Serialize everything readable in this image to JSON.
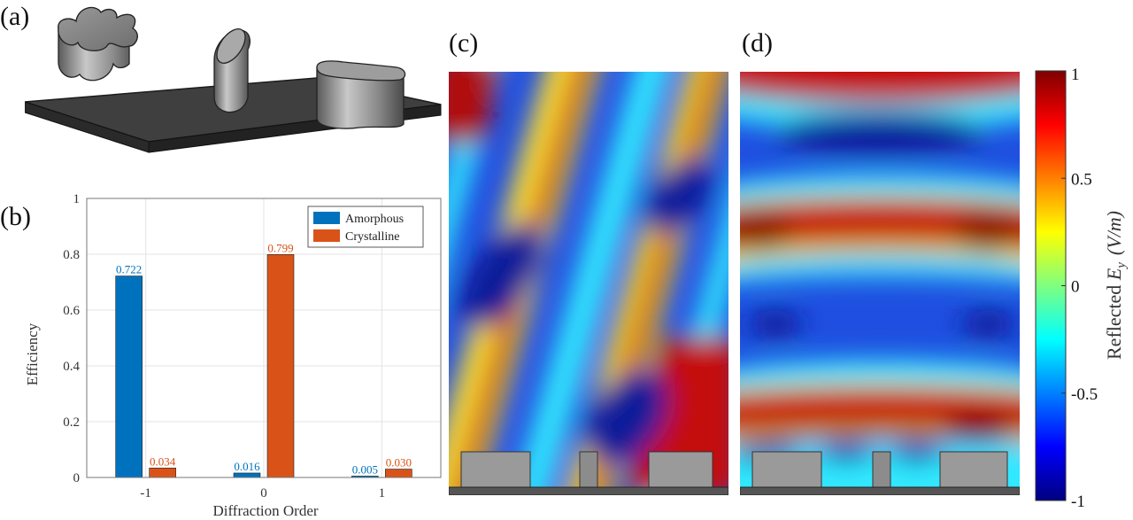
{
  "panels": {
    "a": "(a)",
    "b": "(b)",
    "c": "(c)",
    "d": "(d)"
  },
  "colors": {
    "amorphous": "#0072BD",
    "crystalline": "#D95319"
  },
  "chart_data": [
    {
      "type": "bar",
      "categories": [
        "-1",
        "0",
        "1"
      ],
      "series": [
        {
          "name": "Amorphous",
          "values": [
            0.722,
            0.016,
            0.005
          ],
          "labels": [
            "0.722",
            "0.016",
            "0.005"
          ]
        },
        {
          "name": "Crystalline",
          "values": [
            0.034,
            0.799,
            0.03
          ],
          "labels": [
            "0.034",
            "0.799",
            "0.030"
          ]
        }
      ],
      "xlabel": "Diffraction Order",
      "ylabel": "Efficiency",
      "ylim": [
        0,
        1
      ],
      "yticks": [
        "0",
        "0.2",
        "0.4",
        "0.6",
        "0.8",
        "1"
      ],
      "grid": true,
      "legend": "top-right"
    },
    {
      "type": "heatmap",
      "colorbar": {
        "range": [
          -1,
          1
        ],
        "ticks": [
          "1",
          "0.5",
          "0",
          "-0.5",
          "-1"
        ],
        "label_prefix": "Reflected ",
        "label_var": "E",
        "label_sub": "y",
        "label_units": "(V/m)"
      }
    }
  ]
}
